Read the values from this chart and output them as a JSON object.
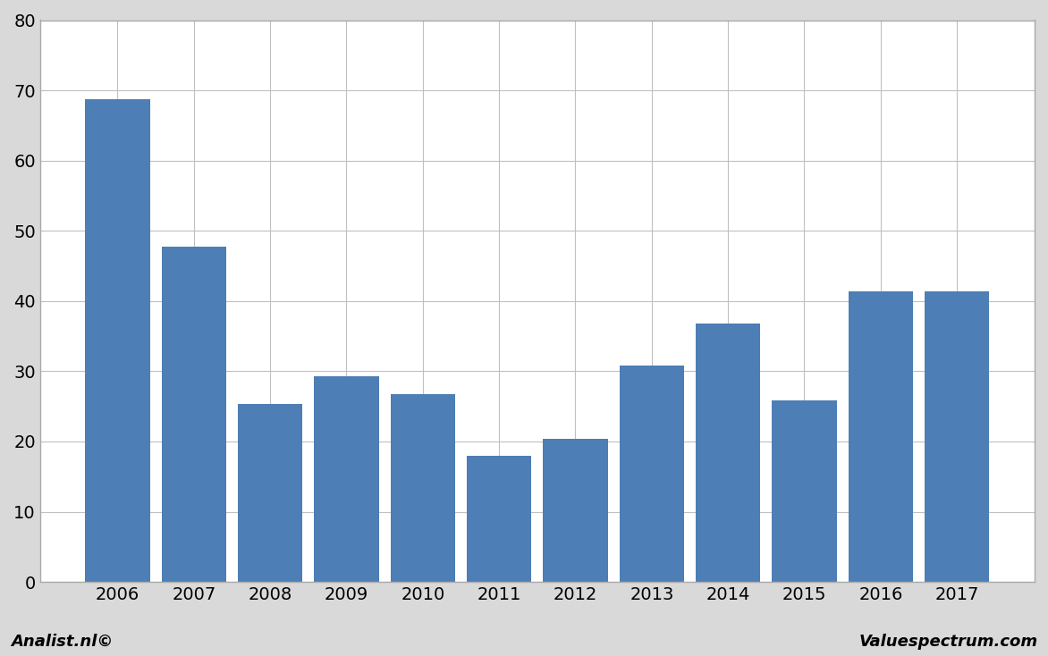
{
  "categories": [
    "2006",
    "2007",
    "2008",
    "2009",
    "2010",
    "2011",
    "2012",
    "2013",
    "2014",
    "2015",
    "2016",
    "2017"
  ],
  "values": [
    68.7,
    47.7,
    25.3,
    29.3,
    26.7,
    17.9,
    20.4,
    30.8,
    36.8,
    25.8,
    41.4,
    41.4
  ],
  "bar_color": "#4d7eb5",
  "background_color": "#d9d9d9",
  "plot_background_color": "#ffffff",
  "border_color": "#aaaaaa",
  "grid_color": "#c0c0c0",
  "ylim": [
    0,
    80
  ],
  "yticks": [
    0,
    10,
    20,
    30,
    40,
    50,
    60,
    70,
    80
  ],
  "footer_left": "Analist.nl©",
  "footer_right": "Valuespectrum.com",
  "tick_fontsize": 14,
  "footer_fontsize": 13
}
